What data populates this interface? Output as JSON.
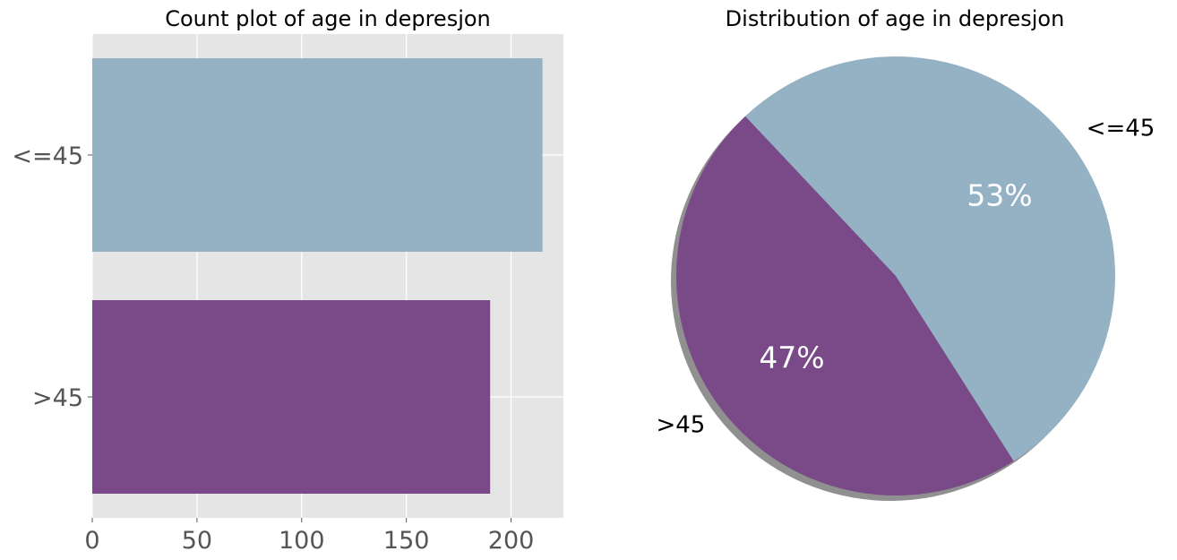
{
  "chart_data": [
    {
      "type": "bar",
      "orientation": "horizontal",
      "title": "Count plot of age in depresjon",
      "categories": [
        "<=45",
        ">45"
      ],
      "values": [
        215,
        190
      ],
      "colors": [
        "#95b2c5",
        "#7a4988"
      ],
      "xlim": [
        0,
        225
      ],
      "xticks": [
        0,
        50,
        100,
        150,
        200
      ],
      "xlabel": "",
      "ylabel": "",
      "grid": true,
      "background": "#e5e5e5"
    },
    {
      "type": "pie",
      "title": "Distribution of age in depresjon",
      "labels": [
        "<=45",
        ">45"
      ],
      "values": [
        53,
        47
      ],
      "percent_labels": [
        "53%",
        "47%"
      ],
      "colors": [
        "#95b2c5",
        "#7a4988"
      ],
      "shadow": true
    }
  ]
}
